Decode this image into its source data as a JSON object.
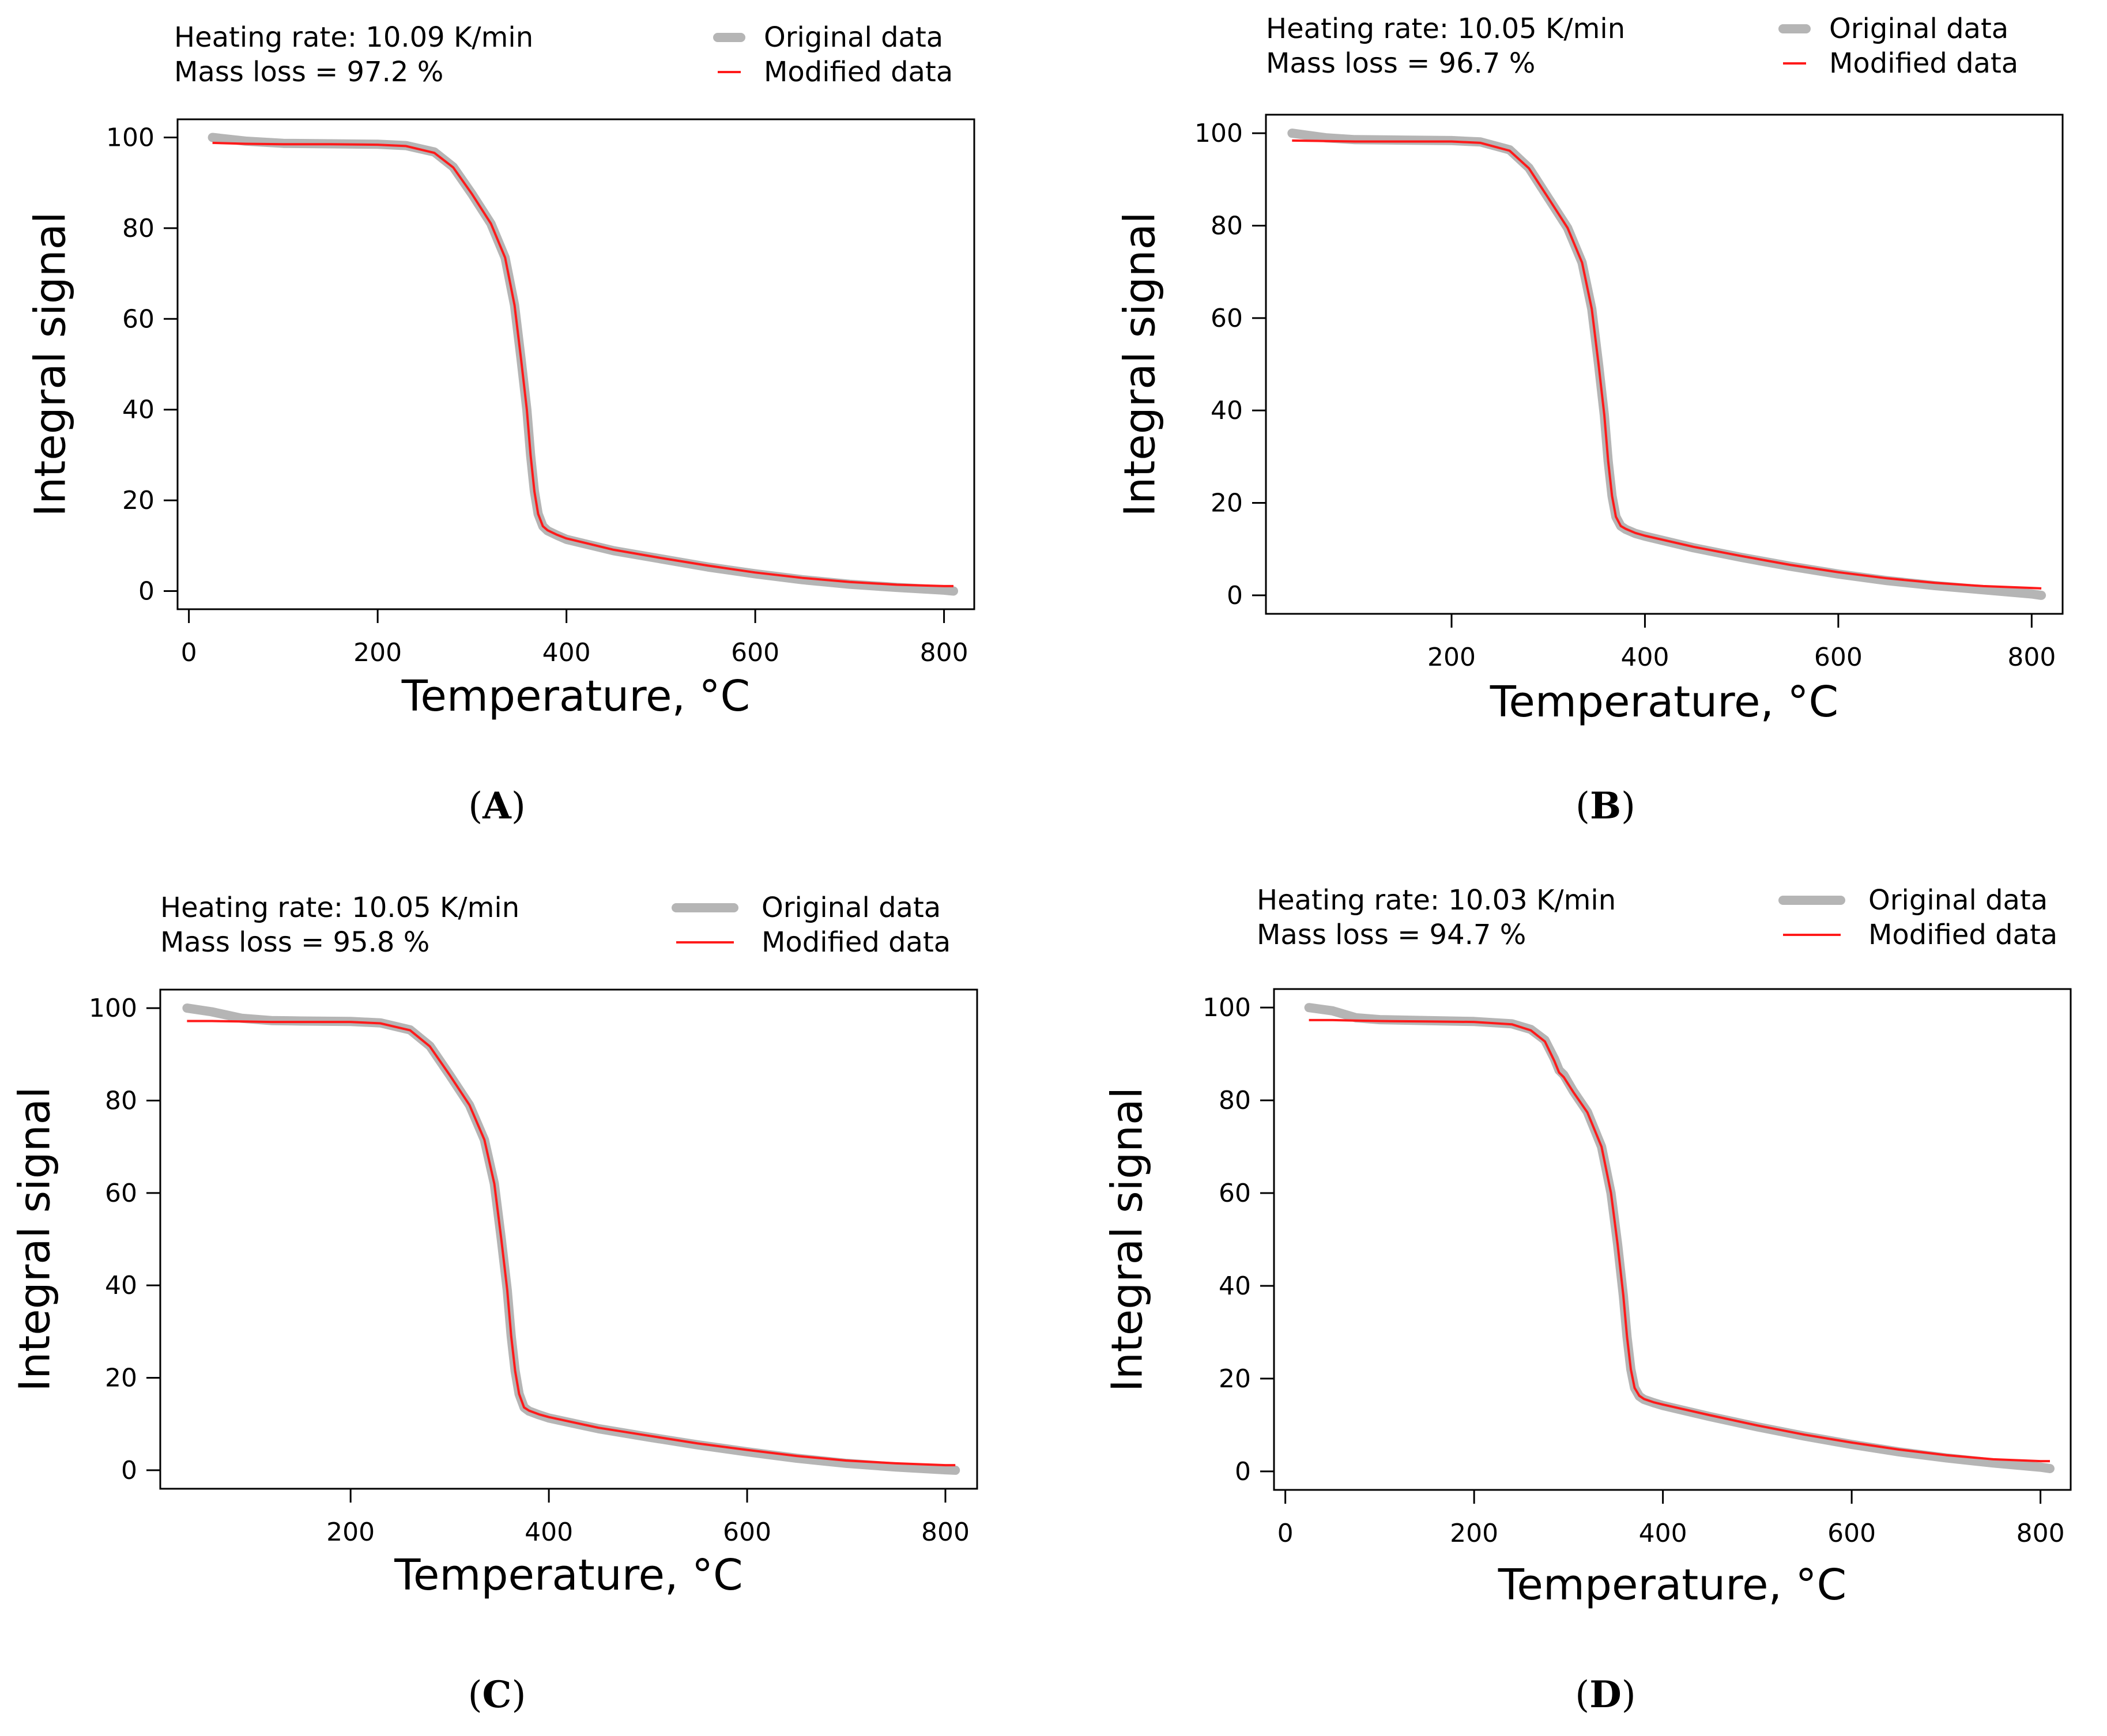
{
  "colors": {
    "original": "#b5b5b5",
    "modified": "#ff1a1a",
    "axis": "#000000"
  },
  "chart_data": [
    {
      "panel": "A",
      "panel_label_open": "(",
      "panel_label_letter": "A",
      "panel_label_close": ")",
      "type": "line",
      "heating_rate_text": "Heating rate: 10.09 K/min",
      "mass_loss_text": "Mass loss = 97.2 %",
      "legend": [
        "Original data",
        "Modified data"
      ],
      "xlabel": "Temperature, °C",
      "ylabel": "Integral signal",
      "xlim": [
        -12,
        832
      ],
      "ylim": [
        -4,
        104
      ],
      "xticks": [
        0,
        200,
        400,
        600,
        800
      ],
      "yticks": [
        0,
        20,
        40,
        60,
        80,
        100
      ],
      "series": [
        {
          "name": "Original data",
          "x": [
            25,
            60,
            100,
            150,
            200,
            230,
            260,
            280,
            300,
            320,
            335,
            345,
            352,
            358,
            362,
            366,
            370,
            375,
            380,
            390,
            400,
            450,
            500,
            550,
            600,
            650,
            700,
            750,
            800,
            810
          ],
          "y": [
            100,
            99.2,
            98.7,
            98.6,
            98.5,
            98.2,
            96.8,
            93.5,
            87.5,
            81,
            73.5,
            63,
            51,
            40,
            30,
            22,
            17,
            14.3,
            13.3,
            12.3,
            11.4,
            8.9,
            7.1,
            5.3,
            3.8,
            2.5,
            1.5,
            0.8,
            0.2,
            0
          ]
        },
        {
          "name": "Modified data",
          "x": [
            25,
            60,
            100,
            150,
            200,
            230,
            260,
            280,
            300,
            320,
            335,
            345,
            352,
            358,
            362,
            366,
            370,
            375,
            380,
            390,
            400,
            450,
            500,
            550,
            600,
            650,
            700,
            750,
            800,
            810
          ],
          "y": [
            98.8,
            98.6,
            98.5,
            98.5,
            98.4,
            98.1,
            96.6,
            93.4,
            87.5,
            81,
            73.5,
            63,
            51,
            40,
            30,
            22,
            17,
            14.3,
            13.4,
            12.4,
            11.6,
            9.1,
            7.3,
            5.6,
            4.1,
            2.9,
            2,
            1.4,
            1.1,
            1.1
          ]
        }
      ]
    },
    {
      "panel": "B",
      "panel_label_open": "(",
      "panel_label_letter": "B",
      "panel_label_close": ")",
      "type": "line",
      "heating_rate_text": "Heating rate: 10.05 K/min",
      "mass_loss_text": "Mass loss = 96.7 %",
      "legend": [
        "Original data",
        "Modified data"
      ],
      "xlabel": "Temperature, °C",
      "ylabel": "Integral signal",
      "xlim": [
        8,
        832
      ],
      "ylim": [
        -4,
        104
      ],
      "xticks": [
        200,
        400,
        600,
        800
      ],
      "yticks": [
        0,
        20,
        40,
        60,
        80,
        100
      ],
      "series": [
        {
          "name": "Original data",
          "x": [
            35,
            70,
            100,
            150,
            200,
            230,
            260,
            280,
            300,
            320,
            335,
            345,
            352,
            358,
            362,
            366,
            370,
            375,
            380,
            390,
            400,
            450,
            500,
            550,
            600,
            650,
            700,
            750,
            800,
            810
          ],
          "y": [
            100,
            99,
            98.6,
            98.5,
            98.4,
            98.1,
            96.4,
            92.5,
            86,
            79.5,
            72,
            62,
            50,
            39,
            29,
            21.5,
            17,
            15,
            14.3,
            13.4,
            12.8,
            10.3,
            8.2,
            6.3,
            4.6,
            3.2,
            2.1,
            1.2,
            0.3,
            0
          ]
        },
        {
          "name": "Modified data",
          "x": [
            35,
            70,
            100,
            150,
            200,
            230,
            260,
            280,
            300,
            320,
            335,
            345,
            352,
            358,
            362,
            366,
            370,
            375,
            380,
            390,
            400,
            450,
            500,
            550,
            600,
            650,
            700,
            750,
            800,
            810
          ],
          "y": [
            98.4,
            98.3,
            98.2,
            98.2,
            98.2,
            97.9,
            96.2,
            92.4,
            86,
            79.5,
            72,
            62,
            50,
            39,
            29,
            21.5,
            17,
            15,
            14.4,
            13.5,
            12.9,
            10.5,
            8.5,
            6.6,
            5,
            3.7,
            2.7,
            2,
            1.6,
            1.5
          ]
        }
      ]
    },
    {
      "panel": "C",
      "panel_label_open": "(",
      "panel_label_letter": "C",
      "panel_label_close": ")",
      "type": "line",
      "heating_rate_text": "Heating rate: 10.05 K/min",
      "mass_loss_text": "Mass loss = 95.8 %",
      "legend": [
        "Original data",
        "Modified data"
      ],
      "xlabel": "Temperature, °C",
      "ylabel": "Integral signal",
      "xlim": [
        8,
        832
      ],
      "ylim": [
        -4,
        104
      ],
      "xticks": [
        200,
        400,
        600,
        800
      ],
      "yticks": [
        0,
        20,
        40,
        60,
        80,
        100
      ],
      "series": [
        {
          "name": "Original data",
          "x": [
            35,
            60,
            90,
            120,
            150,
            200,
            230,
            260,
            280,
            300,
            320,
            335,
            345,
            352,
            358,
            362,
            366,
            370,
            375,
            380,
            390,
            400,
            450,
            500,
            550,
            600,
            650,
            700,
            750,
            800,
            810
          ],
          "y": [
            100,
            99.2,
            97.8,
            97.3,
            97.2,
            97.1,
            96.8,
            95.3,
            91.8,
            85.5,
            79,
            71.5,
            62,
            50,
            39,
            29,
            21.5,
            16.5,
            13.6,
            12.8,
            12,
            11.3,
            9,
            7.2,
            5.5,
            4,
            2.6,
            1.5,
            0.7,
            0.1,
            0
          ]
        },
        {
          "name": "Modified data",
          "x": [
            35,
            60,
            90,
            120,
            150,
            200,
            230,
            260,
            280,
            300,
            320,
            335,
            345,
            352,
            358,
            362,
            366,
            370,
            375,
            380,
            390,
            400,
            450,
            500,
            550,
            600,
            650,
            700,
            750,
            800,
            810
          ],
          "y": [
            97.2,
            97.2,
            97.1,
            97,
            97,
            97,
            96.7,
            95.2,
            91.7,
            85.5,
            79,
            71.5,
            62,
            50,
            39,
            29,
            21.5,
            16.5,
            13.6,
            12.9,
            12.1,
            11.5,
            9.2,
            7.5,
            5.8,
            4.4,
            3.1,
            2.1,
            1.5,
            1.1,
            1.1
          ]
        }
      ]
    },
    {
      "panel": "D",
      "panel_label_open": "(",
      "panel_label_letter": "D",
      "panel_label_close": ")",
      "type": "line",
      "heating_rate_text": "Heating rate: 10.03 K/min",
      "mass_loss_text": "Mass loss = 94.7 %",
      "legend": [
        "Original data",
        "Modified data"
      ],
      "xlabel": "Temperature, °C",
      "ylabel": "Integral signal",
      "xlim": [
        -12,
        832
      ],
      "ylim": [
        -4,
        104
      ],
      "xticks": [
        0,
        200,
        400,
        600,
        800
      ],
      "yticks": [
        0,
        20,
        40,
        60,
        80,
        100
      ],
      "series": [
        {
          "name": "Original data",
          "x": [
            25,
            50,
            75,
            100,
            150,
            200,
            240,
            260,
            275,
            285,
            290,
            295,
            305,
            320,
            335,
            345,
            352,
            358,
            362,
            366,
            370,
            375,
            380,
            390,
            400,
            450,
            500,
            550,
            600,
            650,
            700,
            750,
            800,
            810
          ],
          "y": [
            100,
            99.3,
            97.8,
            97.4,
            97.2,
            97,
            96.5,
            95.3,
            93,
            89,
            86.5,
            85.5,
            82,
            77.5,
            70,
            60,
            49,
            38,
            29,
            22,
            18,
            16.2,
            15.5,
            14.8,
            14.2,
            11.8,
            9.6,
            7.6,
            5.8,
            4.2,
            2.9,
            1.8,
            0.9,
            0.6
          ]
        },
        {
          "name": "Modified data",
          "x": [
            25,
            50,
            75,
            100,
            150,
            200,
            240,
            260,
            275,
            285,
            290,
            295,
            305,
            320,
            335,
            345,
            352,
            358,
            362,
            366,
            370,
            375,
            380,
            390,
            400,
            450,
            500,
            550,
            600,
            650,
            700,
            750,
            800,
            810
          ],
          "y": [
            97.3,
            97.3,
            97.2,
            97.1,
            97,
            96.9,
            96.4,
            95.1,
            92.7,
            88.5,
            86,
            85,
            81.8,
            77.4,
            70,
            60,
            49,
            38,
            29,
            22,
            18,
            16.3,
            15.6,
            14.9,
            14.4,
            12.1,
            9.9,
            7.9,
            6.2,
            4.7,
            3.5,
            2.6,
            2.2,
            2.2
          ]
        }
      ]
    }
  ]
}
